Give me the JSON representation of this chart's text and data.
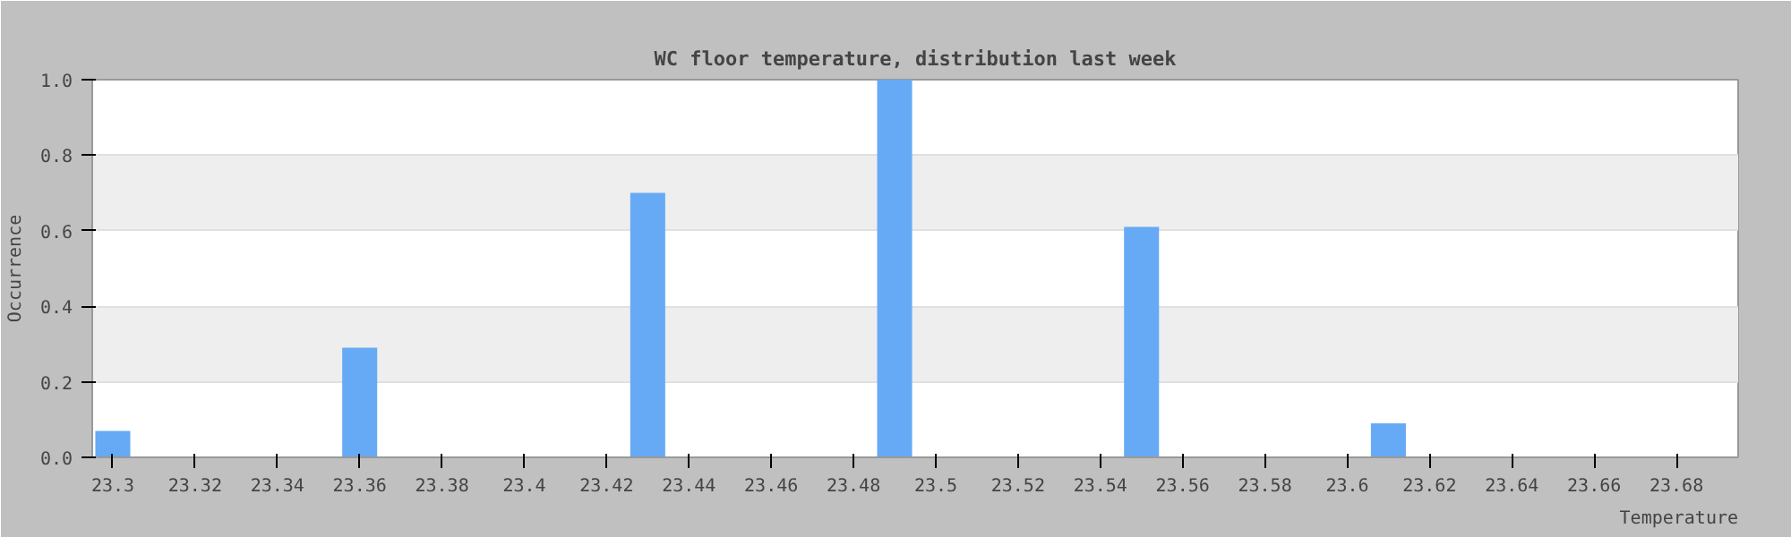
{
  "chart_data": {
    "type": "bar",
    "title": "WC floor temperature, distribution last week",
    "xlabel": "Temperature",
    "ylabel": "Occurrence",
    "x": [
      23.3,
      23.36,
      23.43,
      23.49,
      23.55,
      23.61
    ],
    "values": [
      0.07,
      0.29,
      0.7,
      1.0,
      0.61,
      0.09
    ],
    "color": "#66aaf5",
    "xlim": [
      23.295,
      23.695
    ],
    "xticks": [
      23.3,
      23.32,
      23.34,
      23.36,
      23.38,
      23.4,
      23.42,
      23.44,
      23.46,
      23.48,
      23.5,
      23.52,
      23.54,
      23.56,
      23.58,
      23.6,
      23.62,
      23.64,
      23.66,
      23.68
    ],
    "ylim": [
      0,
      1.0
    ],
    "yticks": [
      {
        "value": 0,
        "label": "0.0"
      },
      0.2,
      0.4,
      0.6,
      0.8,
      {
        "value": 1,
        "label": "1.0"
      }
    ],
    "grid": "y"
  }
}
